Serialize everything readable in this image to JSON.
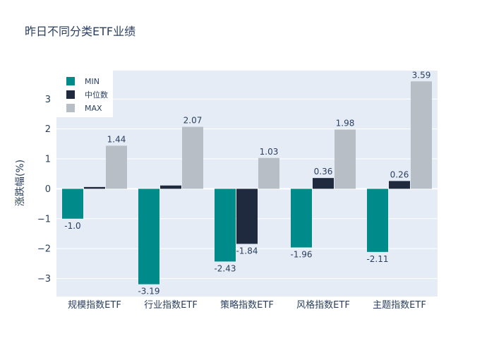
{
  "chart_data": {
    "type": "bar",
    "title": "昨日不同分类ETF业绩",
    "xlabel": "",
    "ylabel": "涨跌幅(%)",
    "categories": [
      "规模指数ETF",
      "行业指数ETF",
      "策略指数ETF",
      "风格指数ETF",
      "主题指数ETF"
    ],
    "series": [
      {
        "name": "MIN",
        "color": "#008b8b",
        "values": [
          -1.0,
          -3.19,
          -2.43,
          -1.96,
          -2.11
        ],
        "labels": [
          "-1.0",
          "-3.19",
          "-2.43",
          "-1.96",
          "-2.11"
        ]
      },
      {
        "name": "中位数",
        "color": "#1f2a3e",
        "values": [
          0.06,
          0.11,
          -1.84,
          0.36,
          0.26
        ],
        "labels": [
          "",
          "",
          "-1.84",
          "0.36",
          "0.26"
        ]
      },
      {
        "name": "MAX",
        "color": "#b8bec6",
        "values": [
          1.44,
          2.07,
          1.03,
          1.98,
          3.59
        ],
        "labels": [
          "1.44",
          "2.07",
          "1.03",
          "1.98",
          "3.59"
        ]
      }
    ],
    "ylim": [
      -3.6,
      3.95
    ],
    "yticks": [
      -3,
      -2,
      -1,
      0,
      1,
      2,
      3
    ],
    "ytick_labels": [
      "−3",
      "−2",
      "−1",
      "0",
      "1",
      "2",
      "3"
    ],
    "grid": true,
    "legend_position": "top-left",
    "colors": {
      "plot_bg": "#e5ecf6",
      "grid": "#ffffff",
      "text": "#2a3f5f"
    }
  }
}
